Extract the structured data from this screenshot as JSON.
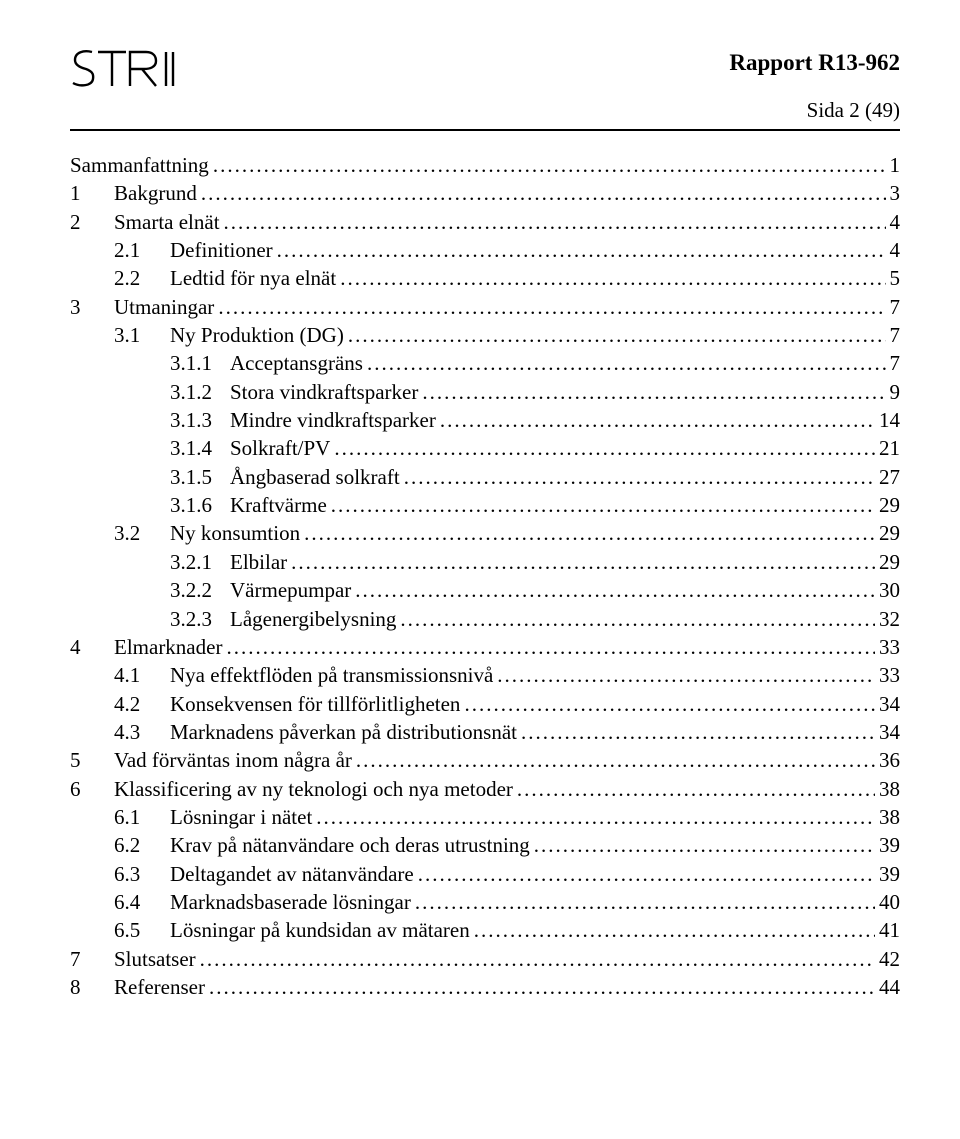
{
  "header": {
    "report_label": "Rapport R13-962",
    "page_label": "Sida 2 (49)"
  },
  "toc": [
    {
      "level": 0,
      "num": "",
      "title": "Sammanfattning",
      "page": "1"
    },
    {
      "level": 0,
      "num": "1",
      "title": "Bakgrund",
      "page": "3"
    },
    {
      "level": 0,
      "num": "2",
      "title": "Smarta elnät",
      "page": "4"
    },
    {
      "level": 1,
      "num": "2.1",
      "title": "Definitioner",
      "page": "4"
    },
    {
      "level": 1,
      "num": "2.2",
      "title": "Ledtid för nya elnät",
      "page": "5"
    },
    {
      "level": 0,
      "num": "3",
      "title": "Utmaningar",
      "page": "7"
    },
    {
      "level": 1,
      "num": "3.1",
      "title": "Ny Produktion (DG)",
      "page": "7"
    },
    {
      "level": 2,
      "num": "3.1.1",
      "title": "Acceptansgräns",
      "page": "7"
    },
    {
      "level": 2,
      "num": "3.1.2",
      "title": "Stora vindkraftsparker",
      "page": "9"
    },
    {
      "level": 2,
      "num": "3.1.3",
      "title": "Mindre vindkraftsparker",
      "page": "14"
    },
    {
      "level": 2,
      "num": "3.1.4",
      "title": "Solkraft/PV",
      "page": "21"
    },
    {
      "level": 2,
      "num": "3.1.5",
      "title": "Ångbaserad solkraft",
      "page": "27"
    },
    {
      "level": 2,
      "num": "3.1.6",
      "title": "Kraftvärme",
      "page": "29"
    },
    {
      "level": 1,
      "num": "3.2",
      "title": "Ny konsumtion",
      "page": "29"
    },
    {
      "level": 2,
      "num": "3.2.1",
      "title": "Elbilar",
      "page": "29"
    },
    {
      "level": 2,
      "num": "3.2.2",
      "title": "Värmepumpar",
      "page": "30"
    },
    {
      "level": 2,
      "num": "3.2.3",
      "title": "Lågenergibelysning",
      "page": "32"
    },
    {
      "level": 0,
      "num": "4",
      "title": "Elmarknader",
      "page": "33"
    },
    {
      "level": 1,
      "num": "4.1",
      "title": "Nya effektflöden på transmissionsnivå",
      "page": "33"
    },
    {
      "level": 1,
      "num": "4.2",
      "title": "Konsekvensen för tillförlitligheten",
      "page": "34"
    },
    {
      "level": 1,
      "num": "4.3",
      "title": "Marknadens påverkan på distributionsnät",
      "page": "34"
    },
    {
      "level": 0,
      "num": "5",
      "title": "Vad förväntas inom några år",
      "page": "36"
    },
    {
      "level": 0,
      "num": "6",
      "title": "Klassificering av ny teknologi och nya metoder",
      "page": "38"
    },
    {
      "level": 1,
      "num": "6.1",
      "title": "Lösningar i nätet",
      "page": "38"
    },
    {
      "level": 1,
      "num": "6.2",
      "title": "Krav på nätanvändare och deras utrustning",
      "page": "39"
    },
    {
      "level": 1,
      "num": "6.3",
      "title": "Deltagandet av nätanvändare",
      "page": "39"
    },
    {
      "level": 1,
      "num": "6.4",
      "title": "Marknadsbaserade lösningar",
      "page": "40"
    },
    {
      "level": 1,
      "num": "6.5",
      "title": "Lösningar på kundsidan av mätaren",
      "page": "41"
    },
    {
      "level": 0,
      "num": "7",
      "title": "Slutsatser",
      "page": "42"
    },
    {
      "level": 0,
      "num": "8",
      "title": "Referenser",
      "page": "44"
    }
  ]
}
